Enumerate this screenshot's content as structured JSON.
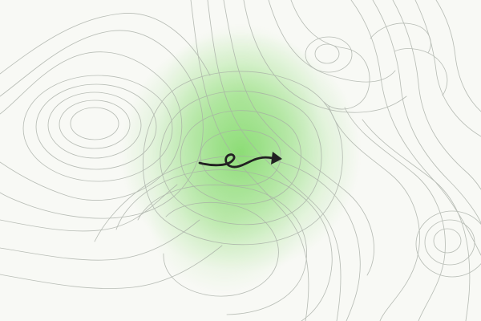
{
  "scene": {
    "background_color": "#f8f9f5",
    "glow_color": "#77d65e",
    "contour_color": "#a7ada5",
    "arrow_color": "#222222",
    "arrow_icon": "curvy-arrow-icon"
  }
}
